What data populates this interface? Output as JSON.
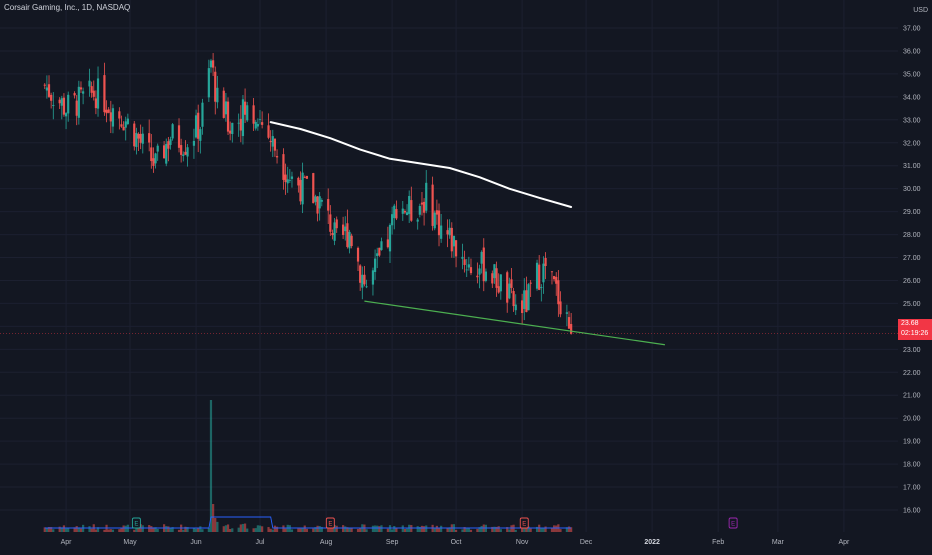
{
  "header": {
    "title": "Corsair Gaming, Inc., 1D, NASDAQ",
    "currency": "USD"
  },
  "last_price": {
    "value": "23.68",
    "countdown": "02:19:26",
    "color": "#f23645"
  },
  "colors": {
    "background": "#131722",
    "up": "#26a69a",
    "down": "#ef5350",
    "volume_up": "#26a69a",
    "volume_down": "#ef5350",
    "moving_average": "#ffffff",
    "trendline": "#4caf50",
    "volume_ma": "#2962ff"
  },
  "earnings_markers": [
    {
      "date": "May 4",
      "label": "E",
      "color": "#26a69a"
    },
    {
      "date": "Aug 3",
      "label": "E",
      "color": "#ef5350"
    },
    {
      "date": "Nov 2",
      "label": "E",
      "color": "#ef5350"
    },
    {
      "date": "Feb 8",
      "label": "E",
      "color": "#9c27b0"
    }
  ],
  "chart_data": {
    "type": "candlestick",
    "symbol": "Corsair Gaming, Inc.",
    "interval": "1D",
    "exchange": "NASDAQ",
    "ylim": [
      15.5,
      37
    ],
    "y_ticks": [
      "37.00",
      "36.00",
      "35.00",
      "34.00",
      "33.00",
      "32.00",
      "31.00",
      "30.00",
      "29.00",
      "28.00",
      "27.00",
      "26.00",
      "25.00",
      "24.00",
      "23.00",
      "22.00",
      "21.00",
      "20.00",
      "19.00",
      "18.00",
      "17.00",
      "16.00"
    ],
    "x_ticks": [
      "Apr",
      "May",
      "Jun",
      "Jul",
      "Aug",
      "Sep",
      "Oct",
      "Nov",
      "Dec",
      "2022",
      "Feb",
      "Mar",
      "Apr"
    ],
    "series": [
      {
        "name": "price",
        "points": [
          {
            "date": "2021-03-22",
            "price": 34.5
          },
          {
            "date": "2021-04-01",
            "price": 33.5
          },
          {
            "date": "2021-04-15",
            "price": 34.2
          },
          {
            "date": "2021-04-29",
            "price": 33.0
          },
          {
            "date": "2021-05-06",
            "price": 32.0
          },
          {
            "date": "2021-05-13",
            "price": 31.0
          },
          {
            "date": "2021-05-20",
            "price": 32.3
          },
          {
            "date": "2021-05-27",
            "price": 32.0
          },
          {
            "date": "2021-06-03",
            "price": 32.8
          },
          {
            "date": "2021-06-08",
            "price": 35.5
          },
          {
            "date": "2021-06-11",
            "price": 33.8
          },
          {
            "date": "2021-06-17",
            "price": 32.8
          },
          {
            "date": "2021-06-24",
            "price": 33.4
          },
          {
            "date": "2021-07-01",
            "price": 33.0
          },
          {
            "date": "2021-07-08",
            "price": 31.8
          },
          {
            "date": "2021-07-15",
            "price": 30.5
          },
          {
            "date": "2021-07-22",
            "price": 30.0
          },
          {
            "date": "2021-07-29",
            "price": 29.4
          },
          {
            "date": "2021-08-03",
            "price": 28.5
          },
          {
            "date": "2021-08-06",
            "price": 27.6
          },
          {
            "date": "2021-08-12",
            "price": 28.2
          },
          {
            "date": "2021-08-17",
            "price": 26.5
          },
          {
            "date": "2021-08-20",
            "price": 25.7
          },
          {
            "date": "2021-08-26",
            "price": 26.8
          },
          {
            "date": "2021-08-31",
            "price": 28.0
          },
          {
            "date": "2021-09-03",
            "price": 29.4
          },
          {
            "date": "2021-09-10",
            "price": 29.0
          },
          {
            "date": "2021-09-17",
            "price": 29.6
          },
          {
            "date": "2021-09-24",
            "price": 28.3
          },
          {
            "date": "2021-10-01",
            "price": 27.5
          },
          {
            "date": "2021-10-08",
            "price": 26.5
          },
          {
            "date": "2021-10-15",
            "price": 26.6
          },
          {
            "date": "2021-10-22",
            "price": 25.8
          },
          {
            "date": "2021-10-29",
            "price": 24.8
          },
          {
            "date": "2021-11-03",
            "price": 25.0
          },
          {
            "date": "2021-11-08",
            "price": 26.2
          },
          {
            "date": "2021-11-12",
            "price": 26.5
          },
          {
            "date": "2021-11-17",
            "price": 25.5
          },
          {
            "date": "2021-11-22",
            "price": 24.5
          },
          {
            "date": "2021-11-24",
            "price": 23.68
          }
        ]
      },
      {
        "name": "moving-average",
        "points": [
          {
            "date": "2021-07-06",
            "price": 32.9
          },
          {
            "date": "2021-07-20",
            "price": 32.6
          },
          {
            "date": "2021-08-03",
            "price": 32.2
          },
          {
            "date": "2021-08-17",
            "price": 31.7
          },
          {
            "date": "2021-08-31",
            "price": 31.3
          },
          {
            "date": "2021-09-14",
            "price": 31.1
          },
          {
            "date": "2021-09-28",
            "price": 30.9
          },
          {
            "date": "2021-10-12",
            "price": 30.5
          },
          {
            "date": "2021-10-26",
            "price": 30.0
          },
          {
            "date": "2021-11-09",
            "price": 29.6
          },
          {
            "date": "2021-11-24",
            "price": 29.2
          }
        ]
      },
      {
        "name": "trendline",
        "points": [
          {
            "date": "2021-08-19",
            "price": 25.1
          },
          {
            "date": "2022-01-07",
            "price": 23.2
          }
        ]
      }
    ]
  }
}
